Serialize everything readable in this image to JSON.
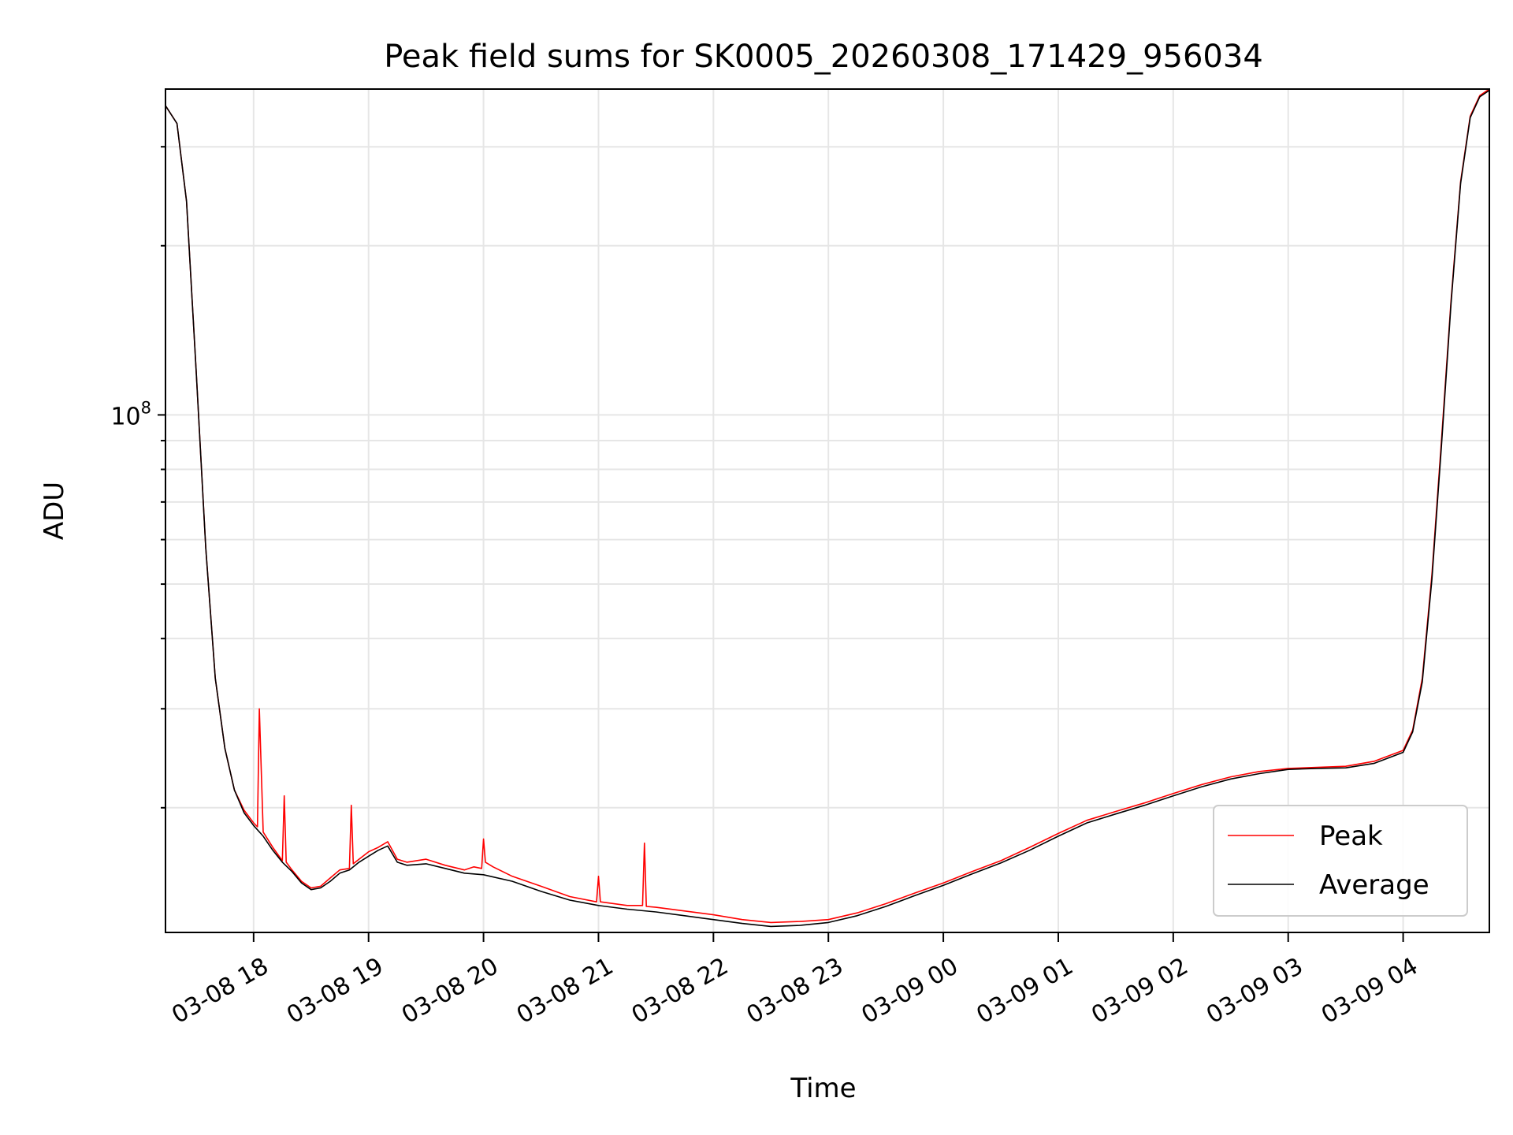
{
  "chart_data": {
    "type": "line",
    "title": "Peak field sums for SK0005_20260308_171429_956034",
    "xlabel": "Time",
    "ylabel": "ADU",
    "x_axis_type": "date",
    "y_scale": "log",
    "grid": true,
    "legend_position": "lower-right",
    "xlim": [
      "2026-03-08 17:14",
      "2026-03-09 04:45"
    ],
    "ylim": [
      12000000,
      380000000
    ],
    "x_ticks": [
      "2026-03-08 18:00",
      "2026-03-08 19:00",
      "2026-03-08 20:00",
      "2026-03-08 21:00",
      "2026-03-08 22:00",
      "2026-03-08 23:00",
      "2026-03-09 00:00",
      "2026-03-09 01:00",
      "2026-03-09 02:00",
      "2026-03-09 03:00",
      "2026-03-09 04:00"
    ],
    "x_tick_labels": [
      "03-08 18",
      "03-08 19",
      "03-08 20",
      "03-08 21",
      "03-08 22",
      "03-08 23",
      "03-09 00",
      "03-09 01",
      "03-09 02",
      "03-09 03",
      "03-09 04"
    ],
    "y_major_ticks": [
      100000000
    ],
    "y_major_tick_labels": [
      "10^8"
    ],
    "series": [
      {
        "name": "Peak",
        "color": "#ff0000",
        "x": [
          "2026-03-08 17:14",
          "2026-03-08 17:20",
          "2026-03-08 17:25",
          "2026-03-08 17:30",
          "2026-03-08 17:35",
          "2026-03-08 17:40",
          "2026-03-08 17:45",
          "2026-03-08 17:50",
          "2026-03-08 17:55",
          "2026-03-08 18:00",
          "2026-03-08 18:02",
          "2026-03-08 18:03",
          "2026-03-08 18:05",
          "2026-03-08 18:10",
          "2026-03-08 18:15",
          "2026-03-08 18:16",
          "2026-03-08 18:17",
          "2026-03-08 18:20",
          "2026-03-08 18:25",
          "2026-03-08 18:30",
          "2026-03-08 18:35",
          "2026-03-08 18:40",
          "2026-03-08 18:45",
          "2026-03-08 18:50",
          "2026-03-08 18:51",
          "2026-03-08 18:52",
          "2026-03-08 18:55",
          "2026-03-08 19:00",
          "2026-03-08 19:05",
          "2026-03-08 19:10",
          "2026-03-08 19:15",
          "2026-03-08 19:20",
          "2026-03-08 19:30",
          "2026-03-08 19:40",
          "2026-03-08 19:50",
          "2026-03-08 19:55",
          "2026-03-08 19:59",
          "2026-03-08 20:00",
          "2026-03-08 20:01",
          "2026-03-08 20:05",
          "2026-03-08 20:15",
          "2026-03-08 20:30",
          "2026-03-08 20:45",
          "2026-03-08 20:59",
          "2026-03-08 21:00",
          "2026-03-08 21:01",
          "2026-03-08 21:15",
          "2026-03-08 21:23",
          "2026-03-08 21:24",
          "2026-03-08 21:25",
          "2026-03-08 21:30",
          "2026-03-08 21:45",
          "2026-03-08 22:00",
          "2026-03-08 22:15",
          "2026-03-08 22:30",
          "2026-03-08 22:45",
          "2026-03-08 23:00",
          "2026-03-08 23:15",
          "2026-03-08 23:30",
          "2026-03-08 23:45",
          "2026-03-09 00:00",
          "2026-03-09 00:15",
          "2026-03-09 00:30",
          "2026-03-09 00:45",
          "2026-03-09 01:00",
          "2026-03-09 01:15",
          "2026-03-09 01:30",
          "2026-03-09 01:45",
          "2026-03-09 02:00",
          "2026-03-09 02:15",
          "2026-03-09 02:30",
          "2026-03-09 02:45",
          "2026-03-09 03:00",
          "2026-03-09 03:15",
          "2026-03-09 03:30",
          "2026-03-09 03:45",
          "2026-03-09 04:00",
          "2026-03-09 04:05",
          "2026-03-09 04:10",
          "2026-03-09 04:15",
          "2026-03-09 04:20",
          "2026-03-09 04:25",
          "2026-03-09 04:30",
          "2026-03-09 04:35",
          "2026-03-09 04:40",
          "2026-03-09 04:45"
        ],
        "values": [
          355000000,
          330000000,
          240000000,
          120000000,
          58000000,
          34000000,
          25500000,
          21500000,
          19800000,
          18800000,
          18500000,
          30000000,
          18100000,
          17000000,
          16100000,
          21000000,
          16000000,
          15500000,
          14800000,
          14400000,
          14500000,
          15000000,
          15500000,
          15600000,
          20200000,
          15900000,
          16200000,
          16700000,
          17000000,
          17400000,
          16200000,
          16000000,
          16200000,
          15800000,
          15500000,
          15700000,
          15600000,
          17600000,
          16000000,
          15700000,
          15100000,
          14500000,
          13900000,
          13600000,
          15100000,
          13600000,
          13400000,
          13400000,
          17300000,
          13350000,
          13300000,
          13100000,
          12900000,
          12650000,
          12500000,
          12550000,
          12650000,
          13000000,
          13500000,
          14100000,
          14700000,
          15400000,
          16100000,
          17000000,
          18000000,
          19000000,
          19700000,
          20400000,
          21200000,
          22000000,
          22700000,
          23200000,
          23500000,
          23600000,
          23700000,
          24200000,
          25300000,
          27500000,
          34000000,
          52000000,
          90000000,
          160000000,
          260000000,
          340000000,
          370000000,
          380000000
        ]
      },
      {
        "name": "Average",
        "color": "#000000",
        "x": [
          "2026-03-08 17:14",
          "2026-03-08 17:20",
          "2026-03-08 17:25",
          "2026-03-08 17:30",
          "2026-03-08 17:35",
          "2026-03-08 17:40",
          "2026-03-08 17:45",
          "2026-03-08 17:50",
          "2026-03-08 17:55",
          "2026-03-08 18:00",
          "2026-03-08 18:05",
          "2026-03-08 18:10",
          "2026-03-08 18:15",
          "2026-03-08 18:20",
          "2026-03-08 18:25",
          "2026-03-08 18:30",
          "2026-03-08 18:35",
          "2026-03-08 18:40",
          "2026-03-08 18:45",
          "2026-03-08 18:50",
          "2026-03-08 18:55",
          "2026-03-08 19:00",
          "2026-03-08 19:05",
          "2026-03-08 19:10",
          "2026-03-08 19:15",
          "2026-03-08 19:20",
          "2026-03-08 19:30",
          "2026-03-08 19:40",
          "2026-03-08 19:50",
          "2026-03-08 20:00",
          "2026-03-08 20:15",
          "2026-03-08 20:30",
          "2026-03-08 20:45",
          "2026-03-08 21:00",
          "2026-03-08 21:15",
          "2026-03-08 21:30",
          "2026-03-08 21:45",
          "2026-03-08 22:00",
          "2026-03-08 22:15",
          "2026-03-08 22:30",
          "2026-03-08 22:45",
          "2026-03-08 23:00",
          "2026-03-08 23:15",
          "2026-03-08 23:30",
          "2026-03-08 23:45",
          "2026-03-09 00:00",
          "2026-03-09 00:15",
          "2026-03-09 00:30",
          "2026-03-09 00:45",
          "2026-03-09 01:00",
          "2026-03-09 01:15",
          "2026-03-09 01:30",
          "2026-03-09 01:45",
          "2026-03-09 02:00",
          "2026-03-09 02:15",
          "2026-03-09 02:30",
          "2026-03-09 02:45",
          "2026-03-09 03:00",
          "2026-03-09 03:15",
          "2026-03-09 03:30",
          "2026-03-09 03:45",
          "2026-03-09 04:00",
          "2026-03-09 04:05",
          "2026-03-09 04:10",
          "2026-03-09 04:15",
          "2026-03-09 04:20",
          "2026-03-09 04:25",
          "2026-03-09 04:30",
          "2026-03-09 04:35",
          "2026-03-09 04:40",
          "2026-03-09 04:45"
        ],
        "values": [
          355000000,
          330000000,
          240000000,
          120000000,
          58000000,
          34000000,
          25500000,
          21500000,
          19600000,
          18600000,
          17800000,
          16800000,
          16000000,
          15400000,
          14700000,
          14300000,
          14400000,
          14800000,
          15300000,
          15500000,
          16000000,
          16400000,
          16800000,
          17100000,
          16000000,
          15800000,
          15900000,
          15600000,
          15300000,
          15200000,
          14800000,
          14200000,
          13700000,
          13400000,
          13200000,
          13050000,
          12850000,
          12650000,
          12450000,
          12300000,
          12350000,
          12500000,
          12850000,
          13350000,
          13950000,
          14550000,
          15250000,
          15950000,
          16800000,
          17800000,
          18800000,
          19500000,
          20200000,
          21000000,
          21800000,
          22500000,
          23000000,
          23400000,
          23500000,
          23550000,
          24000000,
          25100000,
          27300000,
          33500000,
          51000000,
          88000000,
          158000000,
          258000000,
          338000000,
          368000000,
          378000000
        ]
      }
    ]
  }
}
